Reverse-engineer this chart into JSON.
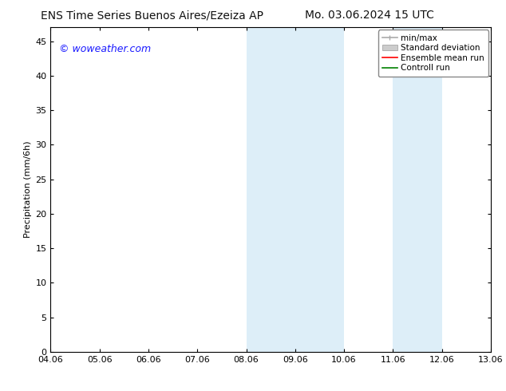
{
  "title_left": "ENS Time Series Buenos Aires/Ezeiza AP",
  "title_right": "Mo. 03.06.2024 15 UTC",
  "ylabel": "Precipitation (mm/6h)",
  "xlabel_ticks": [
    "04.06",
    "05.06",
    "06.06",
    "07.06",
    "08.06",
    "09.06",
    "10.06",
    "11.06",
    "12.06",
    "13.06"
  ],
  "xlim": [
    0,
    9
  ],
  "ylim": [
    0,
    47
  ],
  "yticks": [
    0,
    5,
    10,
    15,
    20,
    25,
    30,
    35,
    40,
    45
  ],
  "shaded_regions": [
    {
      "xstart": 4,
      "xend": 5,
      "color": "#ddeef8"
    },
    {
      "xstart": 5,
      "xend": 6,
      "color": "#ddeef8"
    },
    {
      "xstart": 7,
      "xend": 8,
      "color": "#ddeef8"
    }
  ],
  "watermark_text": "© woweather.com",
  "watermark_color": "#1a1aff",
  "legend_entries": [
    {
      "label": "min/max",
      "color": "#aaaaaa",
      "linestyle": "-",
      "linewidth": 1.2
    },
    {
      "label": "Standard deviation",
      "color": "#cccccc",
      "linestyle": "-",
      "linewidth": 6
    },
    {
      "label": "Ensemble mean run",
      "color": "#ff0000",
      "linestyle": "-",
      "linewidth": 1.2
    },
    {
      "label": "Controll run",
      "color": "#008000",
      "linestyle": "-",
      "linewidth": 1.2
    }
  ],
  "bg_color": "#ffffff",
  "plot_bg_color": "#ffffff",
  "title_fontsize": 10,
  "tick_fontsize": 8,
  "ylabel_fontsize": 8,
  "legend_fontsize": 7.5,
  "watermark_fontsize": 9
}
